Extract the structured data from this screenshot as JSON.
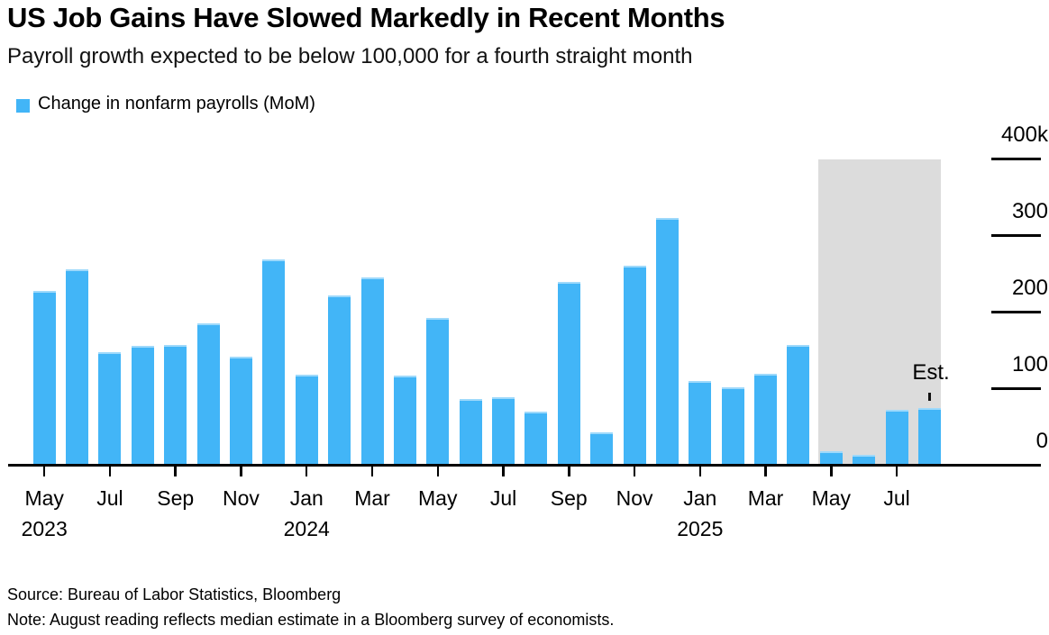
{
  "header": {
    "title": "US Job Gains Have Slowed Markedly in Recent Months",
    "subtitle": "Payroll growth expected to be below 100,000 for a fourth straight month"
  },
  "legend": {
    "label": "Change in nonfarm payrolls (MoM)",
    "swatch_color": "#42b5f7"
  },
  "annotations": {
    "est_label": "Est.",
    "est_applies_to": "Aug 2025"
  },
  "footer": {
    "source": "Source: Bureau of Labor Statistics, Bloomberg",
    "note": "Note: August reading reflects median estimate in a Bloomberg survey of economists."
  },
  "colors": {
    "bar": "#42b5f7",
    "bar_top_edge": "#9ed9fb",
    "forecast_band": "#dcdcdc",
    "axis": "#000000",
    "text": "#000000"
  },
  "chart_data": {
    "type": "bar",
    "title": "US Job Gains Have Slowed Markedly in Recent Months",
    "subtitle": "Payroll growth expected to be below 100,000 for a fourth straight month",
    "series_name": "Change in nonfarm payrolls (MoM)",
    "unit": "thousands of jobs",
    "x": [
      "May 2023",
      "Jun 2023",
      "Jul 2023",
      "Aug 2023",
      "Sep 2023",
      "Oct 2023",
      "Nov 2023",
      "Dec 2023",
      "Jan 2024",
      "Feb 2024",
      "Mar 2024",
      "Apr 2024",
      "May 2024",
      "Jun 2024",
      "Jul 2024",
      "Aug 2024",
      "Sep 2024",
      "Oct 2024",
      "Nov 2024",
      "Dec 2024",
      "Jan 2025",
      "Feb 2025",
      "Mar 2025",
      "Apr 2025",
      "May 2025",
      "Jun 2025",
      "Jul 2025",
      "Aug 2025"
    ],
    "values": [
      228,
      257,
      148,
      157,
      158,
      186,
      142,
      269,
      119,
      222,
      246,
      118,
      193,
      87,
      89,
      71,
      240,
      44,
      261,
      323,
      111,
      102,
      120,
      158,
      19,
      14,
      73,
      75
    ],
    "estimate_month": "Aug 2025",
    "forecast_band_months": [
      "May 2025",
      "Jun 2025",
      "Jul 2025",
      "Aug 2025"
    ],
    "ylim": [
      0,
      400
    ],
    "yticks": [
      0,
      100,
      200,
      300,
      400
    ],
    "ytick_labels": [
      "0",
      "100",
      "200",
      "300",
      "400k"
    ],
    "ytick_side": "right",
    "grid": "right-stubs-only",
    "xtick_labels": [
      "May",
      "Jul",
      "Sep",
      "Nov",
      "Jan",
      "Mar",
      "May",
      "Jul",
      "Sep",
      "Nov",
      "Jan",
      "Mar",
      "May",
      "Jul"
    ],
    "year_labels": [
      {
        "text": "2023",
        "tick_index": 0
      },
      {
        "text": "2024",
        "tick_index": 4
      },
      {
        "text": "2025",
        "tick_index": 10
      }
    ],
    "legend_position": "top-left"
  }
}
